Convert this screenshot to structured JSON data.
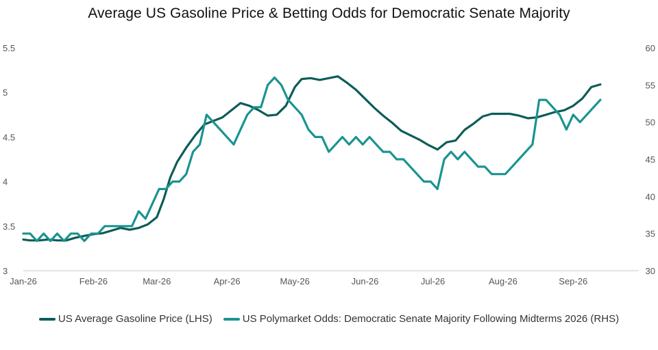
{
  "chart_data": {
    "type": "line",
    "title": "Average US Gasoline Price & Betting Odds for Democratic Senate Majority",
    "x_ticks": [
      "Jan-26",
      "Feb-26",
      "Mar-26",
      "Apr-26",
      "May-26",
      "Jun-26",
      "Jul-26",
      "Aug-26",
      "Sep-26"
    ],
    "y_left": {
      "lim": [
        3,
        5.5
      ],
      "ticks": [
        "3",
        "3.5",
        "4",
        "4.5",
        "5",
        "5.5"
      ]
    },
    "y_right": {
      "lim": [
        30,
        60
      ],
      "ticks": [
        "30",
        "35",
        "40",
        "45",
        "50",
        "55",
        "60"
      ]
    },
    "grid": false,
    "legend_position": "bottom",
    "series": [
      {
        "name": "US Average Gasoline Price (LHS)",
        "axis": "left",
        "color": "#0d5c57",
        "x": [
          "2026-01-01",
          "2026-01-04",
          "2026-01-08",
          "2026-01-12",
          "2026-01-16",
          "2026-01-20",
          "2026-01-24",
          "2026-01-28",
          "2026-02-01",
          "2026-02-05",
          "2026-02-09",
          "2026-02-13",
          "2026-02-17",
          "2026-02-21",
          "2026-02-25",
          "2026-03-01",
          "2026-03-04",
          "2026-03-07",
          "2026-03-10",
          "2026-03-14",
          "2026-03-18",
          "2026-03-22",
          "2026-03-26",
          "2026-03-30",
          "2026-04-03",
          "2026-04-07",
          "2026-04-11",
          "2026-04-15",
          "2026-04-19",
          "2026-04-23",
          "2026-04-27",
          "2026-05-01",
          "2026-05-04",
          "2026-05-08",
          "2026-05-12",
          "2026-05-16",
          "2026-05-20",
          "2026-05-24",
          "2026-05-28",
          "2026-06-01",
          "2026-06-05",
          "2026-06-09",
          "2026-06-13",
          "2026-06-17",
          "2026-06-21",
          "2026-06-25",
          "2026-06-29",
          "2026-07-03",
          "2026-07-07",
          "2026-07-11",
          "2026-07-15",
          "2026-07-19",
          "2026-07-23",
          "2026-07-27",
          "2026-07-31",
          "2026-08-04",
          "2026-08-08",
          "2026-08-12",
          "2026-08-16",
          "2026-08-20",
          "2026-08-24",
          "2026-08-28",
          "2026-09-01",
          "2026-09-05",
          "2026-09-09",
          "2026-09-13"
        ],
        "values": [
          3.35,
          3.34,
          3.34,
          3.35,
          3.34,
          3.34,
          3.37,
          3.39,
          3.41,
          3.42,
          3.45,
          3.48,
          3.46,
          3.48,
          3.52,
          3.6,
          3.8,
          4.05,
          4.22,
          4.38,
          4.52,
          4.64,
          4.68,
          4.72,
          4.8,
          4.88,
          4.85,
          4.8,
          4.74,
          4.75,
          4.85,
          5.06,
          5.15,
          5.16,
          5.14,
          5.16,
          5.18,
          5.11,
          5.03,
          4.93,
          4.83,
          4.74,
          4.66,
          4.57,
          4.52,
          4.47,
          4.41,
          4.36,
          4.44,
          4.46,
          4.58,
          4.65,
          4.73,
          4.76,
          4.76,
          4.76,
          4.74,
          4.71,
          4.72,
          4.75,
          4.78,
          4.8,
          4.85,
          4.93,
          5.06,
          5.09
        ]
      },
      {
        "name": "US Polymarket Odds: Democratic Senate Majority Following Midterms 2026 (RHS)",
        "axis": "right",
        "color": "#1a9391",
        "x": [
          "2026-01-01",
          "2026-01-04",
          "2026-01-07",
          "2026-01-10",
          "2026-01-13",
          "2026-01-16",
          "2026-01-19",
          "2026-01-22",
          "2026-01-25",
          "2026-01-28",
          "2026-01-31",
          "2026-02-03",
          "2026-02-06",
          "2026-02-09",
          "2026-02-12",
          "2026-02-15",
          "2026-02-18",
          "2026-02-21",
          "2026-02-24",
          "2026-02-27",
          "2026-03-02",
          "2026-03-05",
          "2026-03-08",
          "2026-03-11",
          "2026-03-14",
          "2026-03-17",
          "2026-03-20",
          "2026-03-23",
          "2026-03-26",
          "2026-03-29",
          "2026-04-01",
          "2026-04-04",
          "2026-04-07",
          "2026-04-10",
          "2026-04-13",
          "2026-04-16",
          "2026-04-19",
          "2026-04-22",
          "2026-04-25",
          "2026-04-28",
          "2026-05-01",
          "2026-05-04",
          "2026-05-07",
          "2026-05-10",
          "2026-05-13",
          "2026-05-16",
          "2026-05-19",
          "2026-05-22",
          "2026-05-25",
          "2026-05-28",
          "2026-05-31",
          "2026-06-03",
          "2026-06-06",
          "2026-06-09",
          "2026-06-12",
          "2026-06-15",
          "2026-06-18",
          "2026-06-21",
          "2026-06-24",
          "2026-06-27",
          "2026-06-30",
          "2026-07-03",
          "2026-07-06",
          "2026-07-09",
          "2026-07-12",
          "2026-07-15",
          "2026-07-18",
          "2026-07-21",
          "2026-07-24",
          "2026-07-27",
          "2026-07-30",
          "2026-08-02",
          "2026-08-05",
          "2026-08-08",
          "2026-08-11",
          "2026-08-14",
          "2026-08-17",
          "2026-08-20",
          "2026-08-23",
          "2026-08-26",
          "2026-08-29",
          "2026-09-01",
          "2026-09-04",
          "2026-09-07",
          "2026-09-10",
          "2026-09-13"
        ],
        "values": [
          35,
          35,
          34,
          35,
          34,
          35,
          34,
          35,
          35,
          34,
          35,
          35,
          36,
          36,
          36,
          36,
          36,
          38,
          37,
          39,
          41,
          41,
          42,
          42,
          43,
          46,
          47,
          51,
          50,
          49,
          48,
          47,
          49,
          51,
          52,
          52,
          55,
          56,
          55,
          53,
          52,
          51,
          49,
          48,
          48,
          46,
          47,
          48,
          47,
          48,
          47,
          48,
          47,
          46,
          46,
          45,
          45,
          44,
          43,
          42,
          42,
          41,
          45,
          46,
          45,
          46,
          45,
          44,
          44,
          43,
          43,
          43,
          44,
          45,
          46,
          47,
          53,
          53,
          52,
          51,
          49,
          51,
          50,
          51,
          52,
          53
        ]
      }
    ]
  }
}
